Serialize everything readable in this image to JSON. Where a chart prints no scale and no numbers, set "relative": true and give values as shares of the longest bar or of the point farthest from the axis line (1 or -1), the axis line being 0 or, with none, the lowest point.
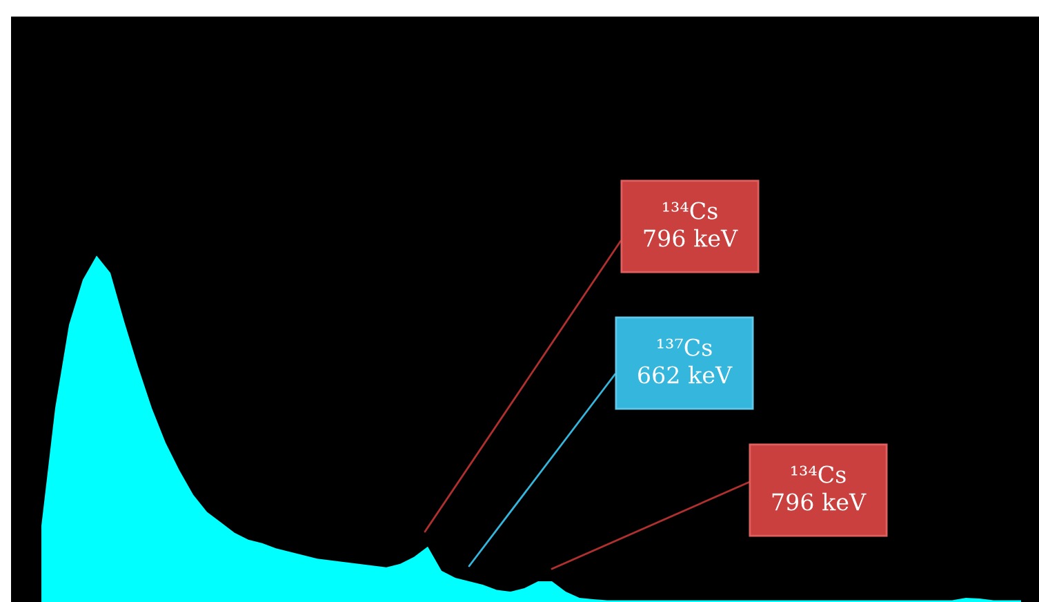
{
  "chart_data": {
    "type": "area",
    "relative": true,
    "color": "#00ffff",
    "categories": [
      null,
      null,
      null,
      null,
      null,
      null,
      null,
      null,
      null,
      null,
      null,
      null,
      null,
      null,
      null,
      null,
      null,
      null,
      null,
      null,
      null,
      null,
      null,
      null,
      null,
      null,
      null,
      null,
      null,
      null,
      null,
      null,
      null,
      null,
      null,
      null,
      null,
      null,
      null,
      null,
      null,
      null,
      null,
      null,
      null,
      null,
      null,
      null,
      null,
      null,
      null,
      null,
      null,
      null,
      null,
      null,
      null,
      null,
      null,
      null,
      null,
      null,
      null,
      null,
      null,
      null,
      null,
      null,
      null,
      null,
      null,
      null
    ],
    "values": [
      0.22,
      0.56,
      0.8,
      0.93,
      1.0,
      0.95,
      0.81,
      0.68,
      0.56,
      0.46,
      0.38,
      0.31,
      0.26,
      0.23,
      0.2,
      0.18,
      0.17,
      0.155,
      0.145,
      0.135,
      0.125,
      0.12,
      0.115,
      0.11,
      0.105,
      0.1,
      0.11,
      0.13,
      0.16,
      0.09,
      0.07,
      0.06,
      0.05,
      0.035,
      0.03,
      0.04,
      0.06,
      0.06,
      0.03,
      0.012,
      0.008,
      0.005,
      0.005,
      0.005,
      0.005,
      0.005,
      0.005,
      0.005,
      0.005,
      0.005,
      0.005,
      0.005,
      0.005,
      0.005,
      0.005,
      0.005,
      0.005,
      0.005,
      0.005,
      0.005,
      0.005,
      0.005,
      0.005,
      0.005,
      0.005,
      0.005,
      0.005,
      0.012,
      0.01,
      0.005,
      0.005,
      0.005
    ],
    "annotations": [
      "¹³⁴Cs\n796 keV",
      "¹³⁷Cs\n662 keV",
      "¹³⁴Cs\n796 keV"
    ]
  }
}
